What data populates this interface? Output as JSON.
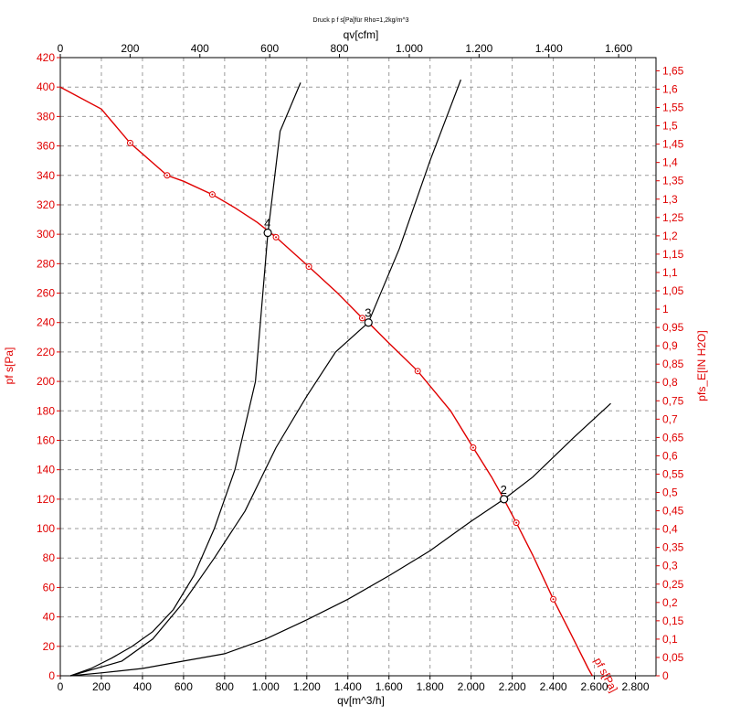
{
  "chart_data": {
    "type": "line",
    "title": "Druck p f s[Pa]für Rho=1,2kg/m^3",
    "xlabel": "qv[m^3/h]",
    "x2label": "qv[cfm]",
    "ylabel": "pf s[Pa]",
    "y2label": "pfs_E[IN H2O]",
    "xlim": [
      0,
      2900
    ],
    "ylim": [
      0,
      420
    ],
    "x2lim": [
      0,
      1707
    ],
    "y2lim": [
      0,
      1.686
    ],
    "x_ticks": [
      "0",
      "200",
      "400",
      "600",
      "800",
      "1.000",
      "1.200",
      "1.400",
      "1.600",
      "1.800",
      "2.000",
      "2.200",
      "2.400",
      "2.600",
      "2.800"
    ],
    "x_tick_values": [
      0,
      200,
      400,
      600,
      800,
      1000,
      1200,
      1400,
      1600,
      1800,
      2000,
      2200,
      2400,
      2600,
      2800
    ],
    "x2_ticks": [
      "0",
      "200",
      "400",
      "600",
      "800",
      "1.000",
      "1.200",
      "1.400",
      "1.600"
    ],
    "x2_tick_values": [
      0,
      200,
      400,
      600,
      800,
      1000,
      1200,
      1400,
      1600
    ],
    "y_ticks": [
      "0",
      "20",
      "40",
      "60",
      "80",
      "100",
      "120",
      "140",
      "160",
      "180",
      "200",
      "220",
      "240",
      "260",
      "280",
      "300",
      "320",
      "340",
      "360",
      "380",
      "400",
      "420"
    ],
    "y_tick_values": [
      0,
      20,
      40,
      60,
      80,
      100,
      120,
      140,
      160,
      180,
      200,
      220,
      240,
      260,
      280,
      300,
      320,
      340,
      360,
      380,
      400,
      420
    ],
    "y2_ticks": [
      "0",
      "0,05",
      "0,1",
      "0,15",
      "0,2",
      "0,25",
      "0,3",
      "0,35",
      "0,4",
      "0,45",
      "0,5",
      "0,55",
      "0,6",
      "0,65",
      "0,7",
      "0,75",
      "0,8",
      "0,85",
      "0,9",
      "0,95",
      "1",
      "1,05",
      "1,1",
      "1,15",
      "1,2",
      "1,25",
      "1,3",
      "1,35",
      "1,4",
      "1,45",
      "1,5",
      "1,55",
      "1,6",
      "1,65"
    ],
    "y2_tick_values": [
      0,
      0.05,
      0.1,
      0.15,
      0.2,
      0.25,
      0.3,
      0.35,
      0.4,
      0.45,
      0.5,
      0.55,
      0.6,
      0.65,
      0.7,
      0.75,
      0.8,
      0.85,
      0.9,
      0.95,
      1.0,
      1.05,
      1.1,
      1.15,
      1.2,
      1.25,
      1.3,
      1.35,
      1.4,
      1.45,
      1.5,
      1.55,
      1.6,
      1.65
    ],
    "grid": true,
    "fan_curve": {
      "name": "pf s[Pa]",
      "color": "#e00000",
      "points": [
        [
          0,
          400
        ],
        [
          200,
          385
        ],
        [
          340,
          362
        ],
        [
          520,
          340
        ],
        [
          600,
          336
        ],
        [
          740,
          327
        ],
        [
          850,
          318
        ],
        [
          960,
          308
        ],
        [
          1050,
          298
        ],
        [
          1210,
          278
        ],
        [
          1350,
          260
        ],
        [
          1470,
          243
        ],
        [
          1500,
          240
        ],
        [
          1600,
          226
        ],
        [
          1740,
          207
        ],
        [
          1900,
          180
        ],
        [
          2010,
          155
        ],
        [
          2100,
          135
        ],
        [
          2160,
          120
        ],
        [
          2220,
          104
        ],
        [
          2300,
          82
        ],
        [
          2400,
          52
        ],
        [
          2480,
          30
        ],
        [
          2570,
          5
        ],
        [
          2590,
          0
        ]
      ],
      "markers": [
        [
          340,
          362
        ],
        [
          520,
          340
        ],
        [
          740,
          327
        ],
        [
          1050,
          298
        ],
        [
          1210,
          278
        ],
        [
          1470,
          243
        ],
        [
          1740,
          207
        ],
        [
          2010,
          155
        ],
        [
          2220,
          104
        ],
        [
          2400,
          52
        ]
      ]
    },
    "system_curves": [
      {
        "points": [
          [
            50,
            0
          ],
          [
            150,
            5
          ],
          [
            250,
            12
          ],
          [
            350,
            20
          ],
          [
            450,
            30
          ],
          [
            550,
            45
          ],
          [
            650,
            68
          ],
          [
            750,
            100
          ],
          [
            850,
            140
          ],
          [
            950,
            200
          ],
          [
            1010,
            300
          ],
          [
            1070,
            370
          ],
          [
            1170,
            403
          ]
        ]
      },
      {
        "points": [
          [
            50,
            0
          ],
          [
            150,
            4
          ],
          [
            300,
            10
          ],
          [
            450,
            25
          ],
          [
            600,
            50
          ],
          [
            750,
            80
          ],
          [
            900,
            112
          ],
          [
            1050,
            155
          ],
          [
            1200,
            190
          ],
          [
            1340,
            220
          ],
          [
            1500,
            240
          ],
          [
            1650,
            290
          ],
          [
            1800,
            350
          ],
          [
            1950,
            405
          ]
        ]
      },
      {
        "points": [
          [
            50,
            0
          ],
          [
            200,
            2
          ],
          [
            400,
            5
          ],
          [
            600,
            10
          ],
          [
            800,
            15
          ],
          [
            1000,
            25
          ],
          [
            1200,
            38
          ],
          [
            1400,
            52
          ],
          [
            1600,
            68
          ],
          [
            1800,
            85
          ],
          [
            2000,
            105
          ],
          [
            2160,
            120
          ],
          [
            2300,
            135
          ],
          [
            2500,
            162
          ],
          [
            2680,
            185
          ]
        ]
      }
    ],
    "operating_points": [
      {
        "label": "4",
        "x": 1010,
        "y": 301
      },
      {
        "label": "3",
        "x": 1500,
        "y": 240
      },
      {
        "label": "2",
        "x": 2160,
        "y": 120
      }
    ]
  }
}
